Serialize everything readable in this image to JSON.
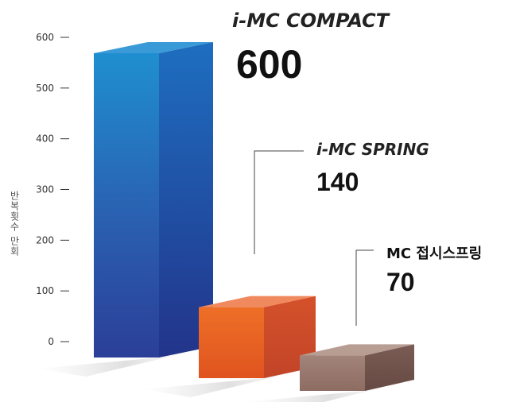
{
  "chart_data": {
    "type": "bar",
    "ylabel": "반복횟수 만회",
    "yticks": [
      0,
      100,
      200,
      300,
      400,
      500,
      600
    ],
    "ylim": [
      0,
      600
    ],
    "bars": [
      {
        "label": "i-MC COMPACT",
        "value": 600,
        "value_text": "600",
        "color": "#2b55a5"
      },
      {
        "label": "i-MC SPRING",
        "value": 140,
        "value_text": "140",
        "color": "#e2622b"
      },
      {
        "label": "MC 접시스프링",
        "value": 70,
        "value_text": "70",
        "color": "#8d6c62"
      }
    ]
  }
}
